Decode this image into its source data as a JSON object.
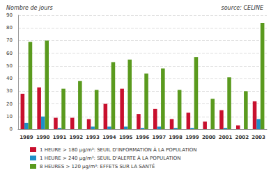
{
  "chart_data": {
    "type": "bar",
    "ylabel": "Nombre de jours",
    "annotations": [
      "source: CELINE"
    ],
    "categories": [
      "1989",
      "1990",
      "1991",
      "1992",
      "1993",
      "1994",
      "1995",
      "1996",
      "1997",
      "1998",
      "1999",
      "2000",
      "2001",
      "2002",
      "2003"
    ],
    "series": [
      {
        "name": "1 HEURE > 180 µg/m³: SEUIL D'INFORMATION À LA POPULATION",
        "color": "#c8102e",
        "values": [
          28,
          33,
          9,
          9,
          8,
          20,
          32,
          12,
          16,
          8,
          13,
          6,
          15,
          3,
          22
        ]
      },
      {
        "name": "1 HEURE > 240 µg/m³: SEUIL D'ALERTE À LA POPULATION",
        "color": "#1e8fc8",
        "values": [
          5,
          10,
          1,
          0,
          2,
          2,
          2,
          1,
          2,
          1,
          1,
          0,
          1,
          0,
          8
        ]
      },
      {
        "name": "8 HEURES > 120 µg/m³: EFFETS SUR LA SANTÉ",
        "color": "#5a9a1e",
        "values": [
          69,
          70,
          32,
          38,
          31,
          53,
          55,
          44,
          48,
          31,
          57,
          24,
          41,
          30,
          84
        ]
      }
    ],
    "ylim": [
      0,
      90
    ],
    "yticks": [
      0,
      10,
      20,
      30,
      40,
      50,
      60,
      70,
      80,
      90
    ],
    "grid": true,
    "legend": "bottom"
  }
}
